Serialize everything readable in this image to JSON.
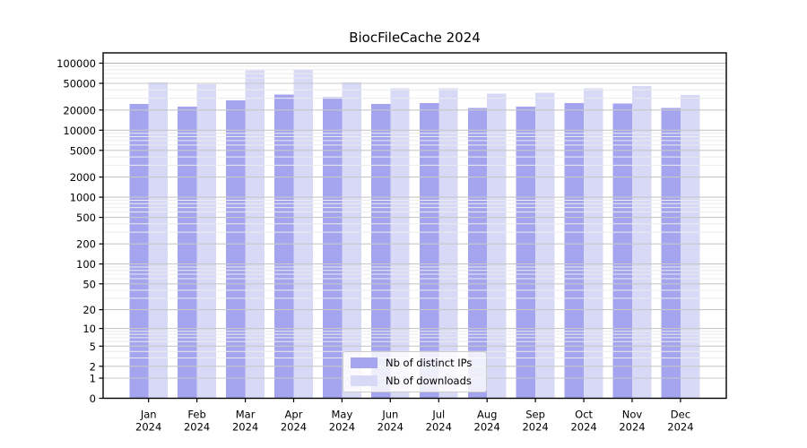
{
  "title": "BiocFileCache 2024",
  "chart_data": {
    "type": "bar",
    "title": "BiocFileCache 2024",
    "categories": [
      "Jan",
      "Feb",
      "Mar",
      "Apr",
      "May",
      "Jun",
      "Jul",
      "Aug",
      "Sep",
      "Oct",
      "Nov",
      "Dec"
    ],
    "x_year_label": "2024",
    "series": [
      {
        "name": "Nb of distinct IPs",
        "color": "#a5a5ef",
        "values": [
          24500,
          22500,
          28000,
          34000,
          31000,
          24500,
          25500,
          21500,
          22500,
          25500,
          25000,
          21500
        ]
      },
      {
        "name": "Nb of downloads",
        "color": "#d8d8f7",
        "values": [
          51500,
          48500,
          78000,
          81000,
          51500,
          42000,
          42000,
          35000,
          36000,
          42500,
          45500,
          33500
        ]
      }
    ],
    "yticks": [
      100000,
      50000,
      20000,
      10000,
      5000,
      2000,
      1000,
      500,
      200,
      100,
      50,
      20,
      10,
      5,
      2,
      1,
      0
    ],
    "ylim": [
      0,
      148000
    ],
    "y_scale": "log10(value+1), 0 pinned to baseline",
    "xlabel": "",
    "ylabel": "",
    "grid": true,
    "legend_position": "lower center"
  },
  "colors": {
    "bar_distinct_ips": "#a5a5ef",
    "bar_downloads": "#d8d8f7",
    "axis": "#000000",
    "grid_major": "#c8c8c8",
    "grid_minor": "#ececec",
    "grid_top_line": "#b2b2b2",
    "legend_border": "#cccccc",
    "legend_background": "rgba(255,255,255,0.82)",
    "background": "#ffffff",
    "text": "#000000"
  }
}
